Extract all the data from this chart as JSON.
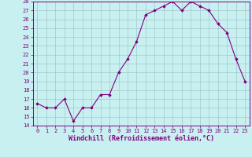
{
  "x": [
    0,
    1,
    2,
    3,
    4,
    5,
    6,
    7,
    8,
    9,
    10,
    11,
    12,
    13,
    14,
    15,
    16,
    17,
    18,
    19,
    20,
    21,
    22,
    23
  ],
  "y": [
    16.5,
    16.0,
    16.0,
    17.0,
    14.5,
    16.0,
    16.0,
    17.5,
    17.5,
    20.0,
    21.5,
    23.5,
    26.5,
    27.0,
    27.5,
    28.0,
    27.0,
    28.0,
    27.5,
    27.0,
    25.5,
    24.5,
    21.5,
    19.0
  ],
  "ylim": [
    14,
    28
  ],
  "yticks": [
    14,
    15,
    16,
    17,
    18,
    19,
    20,
    21,
    22,
    23,
    24,
    25,
    26,
    27,
    28
  ],
  "xlabel": "Windchill (Refroidissement éolien,°C)",
  "line_color": "#800080",
  "marker_color": "#800080",
  "bg_color": "#c8f0f0",
  "grid_color": "#a0c8c8",
  "xlabel_color": "#800080",
  "tick_color": "#800080",
  "tick_fontsize": 5.0,
  "xlabel_fontsize": 6.0,
  "figsize": [
    3.2,
    2.0
  ],
  "dpi": 100
}
